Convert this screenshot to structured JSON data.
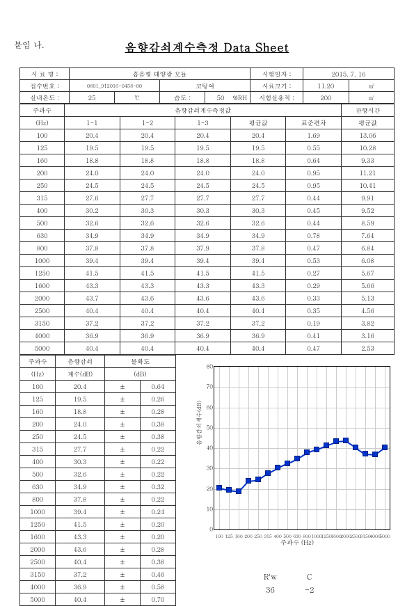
{
  "attach_label": "붙임 나.",
  "title": "음향감쇠계수측정 Data Sheet",
  "meta": {
    "sample_name_label": "시 료 명 :",
    "sample_name_value": "흡음형 태양광 모듈",
    "test_date_label": "시험일자 :",
    "test_date_value": "2015. 7. 16",
    "receipt_no_label": "접수번호 :",
    "receipt_no_value": "0601_912016-0458-00",
    "code_label": "코팅여",
    "size_label": "시료크기 :",
    "size_value": "11.20",
    "size_unit": "㎡",
    "room_temp_label": "실내온도 :",
    "room_temp_value": "25",
    "room_temp_unit": "℃",
    "humidity_label": "습도 :",
    "humidity_value": "50",
    "humidity_unit": "%RH",
    "room_vol_label": "시험실용적 :",
    "room_vol_value": "200",
    "room_vol_unit": "㎥"
  },
  "main_table": {
    "col_freq": "주파수",
    "col_freq_unit": "(Hz)",
    "col_measurements": "음향감쇠계수측정값",
    "col_1_1": "1-1",
    "col_1_2": "1-2",
    "col_1_3": "1-3",
    "col_avg": "평균값",
    "col_std": "표준편차",
    "col_rev_header": "잔향시간",
    "col_rev_avg": "평균값",
    "frequencies": [
      "100",
      "125",
      "160",
      "200",
      "250",
      "315",
      "400",
      "500",
      "630",
      "800",
      "1000",
      "1250",
      "1600",
      "2000",
      "2500",
      "3150",
      "4000",
      "5000"
    ],
    "rows": [
      [
        "100",
        "20.4",
        "20.4",
        "20.4",
        "20.4",
        "1.69",
        "13.06"
      ],
      [
        "125",
        "19.5",
        "19.5",
        "19.5",
        "19.5",
        "0.55",
        "10.28"
      ],
      [
        "160",
        "18.8",
        "18.8",
        "18.8",
        "18.8",
        "0.64",
        "9.33"
      ],
      [
        "200",
        "24.0",
        "24.0",
        "24.0",
        "24.0",
        "0.95",
        "11.21"
      ],
      [
        "250",
        "24.5",
        "24.5",
        "24.5",
        "24.5",
        "0.95",
        "10.41"
      ],
      [
        "315",
        "27.6",
        "27.7",
        "27.7",
        "27.7",
        "0.44",
        "9.91"
      ],
      [
        "400",
        "30.2",
        "30.3",
        "30.3",
        "30.3",
        "0.45",
        "9.52"
      ],
      [
        "500",
        "32.6",
        "32.6",
        "32.6",
        "32.6",
        "0.44",
        "8.59"
      ],
      [
        "630",
        "34.9",
        "34.9",
        "34.9",
        "34.9",
        "0.78",
        "7.64"
      ],
      [
        "800",
        "37.8",
        "37.8",
        "37.9",
        "37.8",
        "0.47",
        "6.84"
      ],
      [
        "1000",
        "39.4",
        "39.4",
        "39.4",
        "39.4",
        "0.53",
        "6.08"
      ],
      [
        "1250",
        "41.5",
        "41.5",
        "41.5",
        "41.5",
        "0.27",
        "5.67"
      ],
      [
        "1600",
        "43.3",
        "43.3",
        "43.3",
        "43.3",
        "0.29",
        "5.66"
      ],
      [
        "2000",
        "43.7",
        "43.6",
        "43.6",
        "43.6",
        "0.33",
        "5.13"
      ],
      [
        "2500",
        "40.4",
        "40.4",
        "40.4",
        "40.4",
        "0.35",
        "4.56"
      ],
      [
        "3150",
        "37.2",
        "37.2",
        "37.2",
        "37.2",
        "0.19",
        "3.82"
      ],
      [
        "4000",
        "36.9",
        "36.9",
        "36.9",
        "36.9",
        "0.41",
        "3.16"
      ],
      [
        "5000",
        "40.4",
        "40.4",
        "40.4",
        "40.4",
        "0.47",
        "2.53"
      ]
    ]
  },
  "left_table": {
    "col_freq": "주파수",
    "col_freq_unit": "(Hz)",
    "col_coef": "음향감쇠",
    "col_coef_unit": "계수(dB)",
    "col_unc": "불확도",
    "col_unc_unit": "(dB)",
    "pm": "±",
    "rows": [
      [
        "100",
        "20.4",
        "0.64"
      ],
      [
        "125",
        "19.5",
        "0.26"
      ],
      [
        "160",
        "18.8",
        "0.28"
      ],
      [
        "200",
        "24.0",
        "0.38"
      ],
      [
        "250",
        "24.5",
        "0.38"
      ],
      [
        "315",
        "27.7",
        "0.22"
      ],
      [
        "400",
        "30.3",
        "0.22"
      ],
      [
        "500",
        "32.6",
        "0.22"
      ],
      [
        "630",
        "34.9",
        "0.32"
      ],
      [
        "800",
        "37.8",
        "0.22"
      ],
      [
        "1000",
        "39.4",
        "0.24"
      ],
      [
        "1250",
        "41.5",
        "0.20"
      ],
      [
        "1600",
        "43.3",
        "0.20"
      ],
      [
        "2000",
        "43.6",
        "0.28"
      ],
      [
        "2500",
        "40.4",
        "0.38"
      ],
      [
        "3150",
        "37.2",
        "0.46"
      ],
      [
        "4000",
        "36.9",
        "0.58"
      ],
      [
        "5000",
        "40.4",
        "0.70"
      ]
    ]
  },
  "chart": {
    "type": "line",
    "ylim": [
      0,
      80
    ],
    "ytick_step": 10,
    "ylabel": "음향감쇠계수(dB)",
    "xlabel": "주파수 (Hz)",
    "x_categories": [
      "100",
      "125",
      "160",
      "200",
      "250",
      "315",
      "400",
      "500",
      "630",
      "800",
      "1000",
      "1250",
      "1600",
      "2000",
      "2500",
      "3150",
      "4000",
      "5000"
    ],
    "values": [
      20.4,
      19.5,
      18.8,
      24.0,
      24.5,
      27.7,
      30.3,
      32.6,
      34.9,
      37.8,
      39.4,
      41.5,
      43.3,
      43.6,
      40.4,
      37.2,
      36.9,
      40.4
    ],
    "line_color": "#0033cc",
    "marker_color": "#0033cc",
    "grid_color": "#cccccc",
    "background_color": "#ffffff"
  },
  "rw": {
    "label_rw": "R'w",
    "label_c": "C",
    "val_rw": "36",
    "val_c": "-2"
  }
}
